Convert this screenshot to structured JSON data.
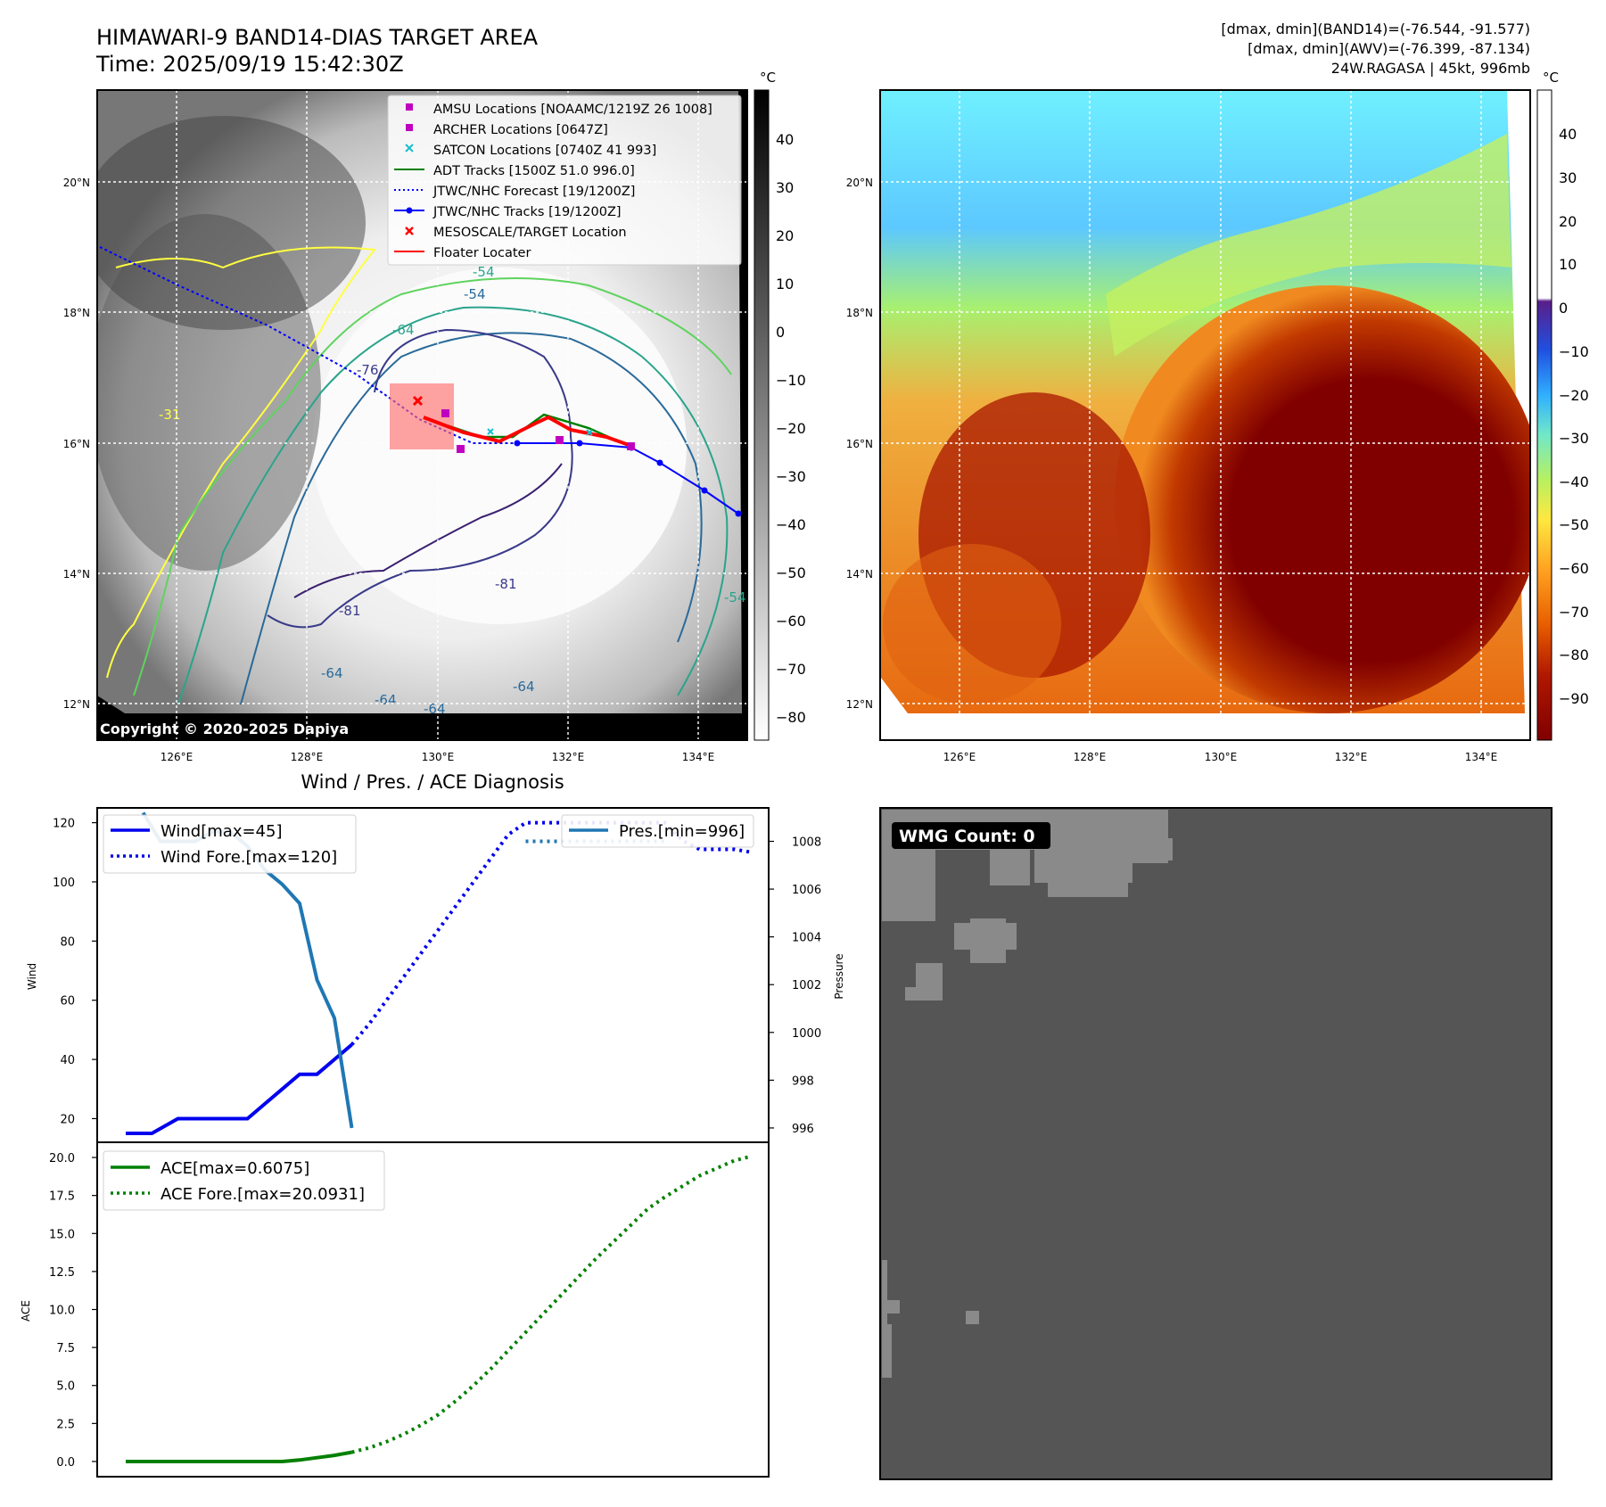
{
  "header": {
    "title_line1": "HIMAWARI-9 BAND14-DIAS TARGET AREA",
    "title_line2": "Time: 2025/09/19 15:42:30Z",
    "info_line1": "[dmax, dmin](BAND14)=(-76.544, -91.577)",
    "info_line2": "[dmax, dmin](AWV)=(-76.399, -87.134)",
    "info_line3": "24W.RAGASA | 45kt, 996mb"
  },
  "ir_map": {
    "copyright": "Copyright © 2020-2025 Dapiya",
    "colorbar_unit": "°C",
    "colorbar_ticks": [
      "40",
      "30",
      "20",
      "10",
      "0",
      "−10",
      "−20",
      "−30",
      "−40",
      "−50",
      "−60",
      "−70",
      "−80"
    ],
    "contour_labels": [
      "-54",
      "-64",
      "-76",
      "-81",
      "-81",
      "-64",
      "-64",
      "-64",
      "-54",
      "-64",
      "-31",
      "-54"
    ],
    "legend": [
      {
        "label": "AMSU Locations [NOAAMC/1219Z 26 1008]",
        "marker": "square",
        "color": "#c000c0"
      },
      {
        "label": "ARCHER Locations [0647Z]",
        "marker": "square",
        "color": "#c000c0"
      },
      {
        "label": "SATCON Locations [0740Z 41 993]",
        "marker": "x",
        "color": "#17becf"
      },
      {
        "label": "ADT Tracks [1500Z 51.0 996.0]",
        "marker": "line",
        "color": "#008000"
      },
      {
        "label": "JTWC/NHC Forecast [19/1200Z]",
        "marker": "dotted",
        "color": "#0000ff"
      },
      {
        "label": "JTWC/NHC Tracks [19/1200Z]",
        "marker": "line-dot",
        "color": "#0000ff"
      },
      {
        "label": "MESOSCALE/TARGET Location",
        "marker": "x",
        "color": "#ff0000"
      },
      {
        "label": "Floater Locater",
        "marker": "line",
        "color": "#ff0000"
      }
    ]
  },
  "map_axes": {
    "lat_labels": [
      "20°N",
      "18°N",
      "16°N",
      "14°N",
      "12°N"
    ],
    "lon_labels": [
      "126°E",
      "128°E",
      "130°E",
      "132°E",
      "134°E"
    ]
  },
  "awv_map": {
    "colorbar_unit": "°C",
    "colorbar_ticks": [
      "40",
      "30",
      "20",
      "10",
      "0",
      "−10",
      "−20",
      "−30",
      "−40",
      "−50",
      "−60",
      "−70",
      "−80",
      "−90"
    ]
  },
  "wmg": {
    "label": "WMG Count: 0",
    "background": "#555555",
    "cells": "#8a8a8a"
  },
  "chart_data": [
    {
      "type": "line",
      "title": "Wind / Pres. / ACE Diagnosis",
      "ylabel": "Wind",
      "ylabel_right": "Pressure",
      "ylim": [
        12,
        125
      ],
      "ylim_right": [
        995.4,
        1009.4
      ],
      "yticks": [
        20,
        40,
        60,
        80,
        100,
        120
      ],
      "yticks_right": [
        996,
        998,
        1000,
        1002,
        1004,
        1006,
        1008
      ],
      "series": [
        {
          "name": "Wind[max=45]",
          "style": "solid",
          "color": "#0000ee",
          "x": [
            0,
            1.5,
            3,
            4,
            5,
            6,
            7,
            8,
            9,
            10,
            11,
            12,
            13
          ],
          "values": [
            15,
            15,
            20,
            20,
            20,
            20,
            20,
            25,
            30,
            35,
            35,
            40,
            45
          ]
        },
        {
          "name": "Wind Fore.[max=120]",
          "style": "dotted",
          "color": "#0000ee",
          "x": [
            13,
            14,
            15,
            16,
            17,
            18,
            19,
            20,
            21,
            22,
            23,
            24,
            25,
            26,
            27,
            28,
            29,
            30,
            31,
            32,
            33,
            34,
            35,
            36
          ],
          "values": [
            45,
            52,
            60,
            68,
            76,
            84,
            92,
            100,
            108,
            116,
            120,
            120,
            120,
            120,
            120,
            120,
            120,
            120,
            120,
            114,
            111,
            111,
            111,
            110
          ]
        },
        {
          "name": "Pres.[min=996]",
          "style": "solid",
          "color": "#1f77b4",
          "axis": "right",
          "x": [
            1,
            2,
            4,
            5,
            6,
            7,
            8,
            9,
            10,
            11,
            12,
            13
          ],
          "values": [
            1009.2,
            1008.0,
            1008.0,
            1008.4,
            1008.4,
            1007.8,
            1006.8,
            1006.2,
            1005.4,
            1002.2,
            1000.6,
            996.0
          ]
        },
        {
          "name": "",
          "style": "dotted",
          "color": "#1f77b4",
          "axis": "right",
          "x": [
            23,
            24,
            25,
            26,
            27,
            28,
            29,
            30,
            31
          ],
          "values": [
            1008.0,
            1008.0,
            1008.0,
            1008.0,
            1008.0,
            1008.0,
            1008.0,
            1008.0,
            1008.0
          ]
        }
      ]
    },
    {
      "type": "line",
      "ylabel": "ACE",
      "ylim": [
        -1,
        21
      ],
      "yticks": [
        "0.0",
        "2.5",
        "5.0",
        "7.5",
        "10.0",
        "12.5",
        "15.0",
        "17.5",
        "20.0"
      ],
      "series": [
        {
          "name": "ACE[max=0.6075]",
          "style": "solid",
          "color": "#008000",
          "x": [
            0,
            3,
            6,
            9,
            10,
            11,
            12,
            13
          ],
          "values": [
            0,
            0,
            0,
            0,
            0.1,
            0.25,
            0.4,
            0.6075
          ]
        },
        {
          "name": "ACE Fore.[max=20.0931]",
          "style": "dotted",
          "color": "#008000",
          "x": [
            13,
            14,
            15,
            16,
            17,
            18,
            19,
            20,
            21,
            22,
            23,
            24,
            25,
            26,
            27,
            28,
            29,
            30,
            31,
            32,
            33,
            34,
            35,
            36
          ],
          "values": [
            0.61,
            0.9,
            1.3,
            1.8,
            2.4,
            3.1,
            4.0,
            5.0,
            6.1,
            7.3,
            8.5,
            9.7,
            10.9,
            12.1,
            13.3,
            14.4,
            15.5,
            16.6,
            17.4,
            18.1,
            18.8,
            19.3,
            19.8,
            20.09
          ]
        }
      ]
    }
  ]
}
